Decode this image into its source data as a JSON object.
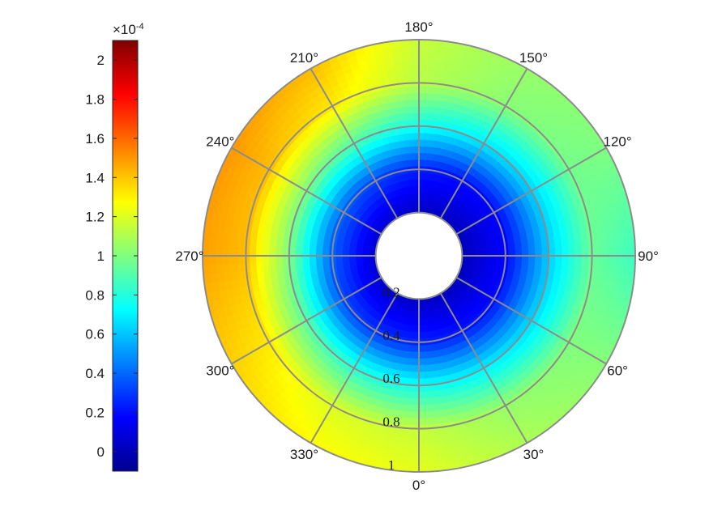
{
  "chart_data": {
    "type": "heatmap",
    "subtype": "polar",
    "colormap": "jet",
    "title": "",
    "color_limits": [
      -0.1,
      2.1
    ],
    "colorbar": {
      "exponent_label": "×10",
      "exponent": "-4",
      "ticks": [
        {
          "value": 2,
          "label": "2"
        },
        {
          "value": 1.8,
          "label": "1.8"
        },
        {
          "value": 1.6,
          "label": "1.6"
        },
        {
          "value": 1.4,
          "label": "1.4"
        },
        {
          "value": 1.2,
          "label": "1.2"
        },
        {
          "value": 1,
          "label": "1"
        },
        {
          "value": 0.8,
          "label": "0.8"
        },
        {
          "value": 0.6,
          "label": "0.6"
        },
        {
          "value": 0.4,
          "label": "0.4"
        },
        {
          "value": 0.2,
          "label": "0.2"
        },
        {
          "value": 0,
          "label": "0"
        }
      ]
    },
    "angular_axis": {
      "zero_location": "bottom",
      "direction": "counterclockwise",
      "ticks": [
        {
          "deg": 0,
          "label": "0°"
        },
        {
          "deg": 30,
          "label": "30°"
        },
        {
          "deg": 60,
          "label": "60°"
        },
        {
          "deg": 90,
          "label": "90°"
        },
        {
          "deg": 120,
          "label": "120°"
        },
        {
          "deg": 150,
          "label": "150°"
        },
        {
          "deg": 180,
          "label": "180°"
        },
        {
          "deg": 210,
          "label": "210°"
        },
        {
          "deg": 240,
          "label": "240°"
        },
        {
          "deg": 270,
          "label": "270°"
        },
        {
          "deg": 300,
          "label": "300°"
        },
        {
          "deg": 330,
          "label": "330°"
        }
      ]
    },
    "radial_axis": {
      "range": [
        0,
        1
      ],
      "data_range": [
        0.2,
        1
      ],
      "ticks": [
        {
          "value": 0.2,
          "label": "0.2"
        },
        {
          "value": 0.4,
          "label": "0.4"
        },
        {
          "value": 0.6,
          "label": "0.6"
        },
        {
          "value": 0.8,
          "label": "0.8"
        },
        {
          "value": 1,
          "label": "1"
        }
      ]
    },
    "grid": true,
    "grid_color": "#8c8c8c",
    "field_samples": {
      "radii": [
        0.2,
        0.4,
        0.6,
        0.8,
        1.0
      ],
      "angles_deg": [
        0,
        30,
        60,
        90,
        120,
        150,
        180,
        210,
        240,
        270,
        300,
        330
      ],
      "values_e4": [
        [
          0.05,
          0.04,
          0.03,
          0.03,
          0.03,
          0.04,
          0.05,
          0.07,
          0.08,
          0.08,
          0.07,
          0.06
        ],
        [
          0.25,
          0.22,
          0.2,
          0.18,
          0.18,
          0.2,
          0.24,
          0.32,
          0.38,
          0.38,
          0.33,
          0.28
        ],
        [
          0.75,
          0.7,
          0.65,
          0.62,
          0.63,
          0.68,
          0.76,
          0.9,
          1.0,
          1.0,
          0.92,
          0.82
        ],
        [
          1.15,
          1.05,
          1.0,
          0.95,
          0.97,
          1.02,
          1.12,
          1.32,
          1.42,
          1.42,
          1.32,
          1.2
        ],
        [
          1.22,
          1.1,
          1.02,
          0.85,
          1.0,
          1.05,
          1.15,
          1.42,
          1.5,
          1.48,
          1.38,
          1.28
        ]
      ]
    }
  }
}
